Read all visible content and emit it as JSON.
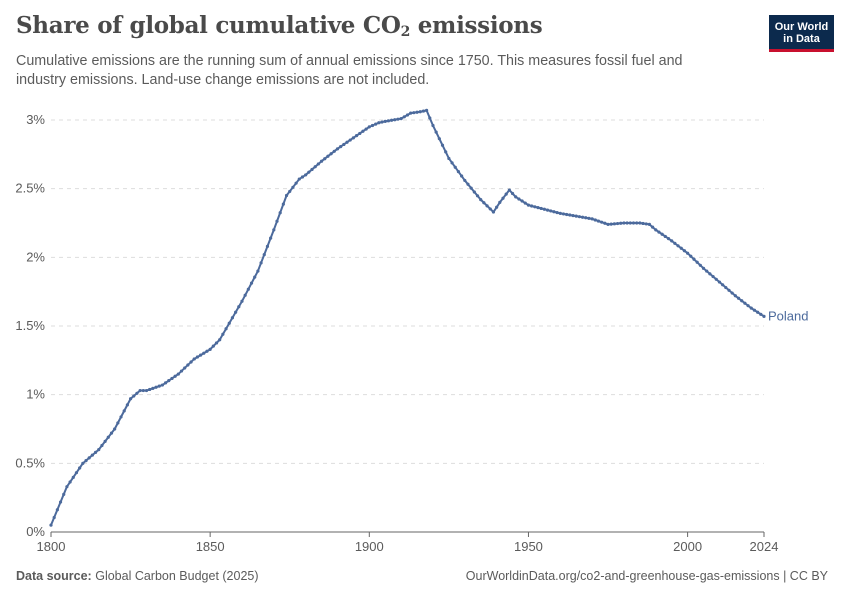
{
  "header": {
    "title_main": "Share of global cumulative CO",
    "title_sub": "2",
    "title_end": " emissions",
    "subtitle": "Cumulative emissions are the running sum of annual emissions since 1750. This measures fossil fuel and industry emissions. Land-use change emissions are not included.",
    "logo_line1": "Our World",
    "logo_line2": "in Data"
  },
  "footer": {
    "source_label": "Data source:",
    "source_text": "Global Carbon Budget (2025)",
    "url_text": "OurWorldinData.org/co2-and-greenhouse-gas-emissions | CC BY"
  },
  "colors": {
    "series": "#4c6a9c",
    "grid": "#dddddd",
    "axis": "#666666"
  },
  "chart_data": {
    "type": "line",
    "title": "Share of global cumulative CO₂ emissions",
    "xlim": [
      1800,
      2024
    ],
    "ylim": [
      0,
      3
    ],
    "xticks": [
      1800,
      1850,
      1900,
      1950,
      2000,
      2024
    ],
    "xtick_labels": [
      "1800",
      "1850",
      "1900",
      "1950",
      "2000",
      "2024"
    ],
    "yticks": [
      0,
      0.5,
      1,
      1.5,
      2,
      2.5,
      3
    ],
    "ytick_labels": [
      "0%",
      "0.5%",
      "1%",
      "1.5%",
      "2%",
      "2.5%",
      "3%"
    ],
    "grid": true,
    "series": [
      {
        "name": "Poland",
        "x": [
          1800,
          1805,
          1810,
          1815,
          1820,
          1825,
          1828,
          1830,
          1835,
          1840,
          1845,
          1850,
          1853,
          1856,
          1860,
          1865,
          1870,
          1874,
          1878,
          1880,
          1885,
          1890,
          1895,
          1900,
          1903,
          1905,
          1910,
          1913,
          1916,
          1918,
          1920,
          1925,
          1930,
          1935,
          1939,
          1941,
          1944,
          1946,
          1950,
          1955,
          1960,
          1965,
          1970,
          1975,
          1980,
          1985,
          1988,
          1990,
          1995,
          2000,
          2005,
          2010,
          2015,
          2020,
          2024
        ],
        "y": [
          0.05,
          0.33,
          0.5,
          0.6,
          0.75,
          0.97,
          1.03,
          1.03,
          1.07,
          1.15,
          1.26,
          1.33,
          1.4,
          1.52,
          1.68,
          1.9,
          2.2,
          2.45,
          2.57,
          2.6,
          2.7,
          2.79,
          2.87,
          2.95,
          2.98,
          2.99,
          3.01,
          3.05,
          3.06,
          3.07,
          2.96,
          2.72,
          2.56,
          2.42,
          2.33,
          2.4,
          2.49,
          2.44,
          2.38,
          2.35,
          2.32,
          2.3,
          2.28,
          2.24,
          2.25,
          2.25,
          2.24,
          2.2,
          2.12,
          2.03,
          1.92,
          1.82,
          1.72,
          1.63,
          1.57
        ]
      }
    ]
  }
}
